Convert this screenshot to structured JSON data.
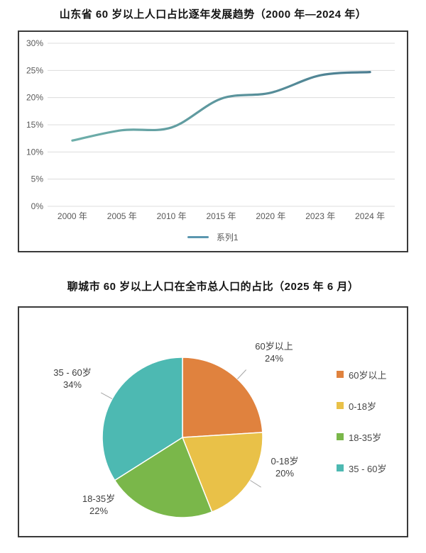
{
  "titles": {
    "line_chart": "山东省 60 岁以上人口占比逐年发展趋势（2000 年—2024 年）",
    "pie_chart": "聊城市 60 岁以上人口在全市总人口的占比（2025 年 6 月）"
  },
  "chart_data": [
    {
      "type": "line",
      "title": "山东省 60 岁以上人口占比逐年发展趋势（2000 年—2024 年）",
      "categories": [
        "2000 年",
        "2005 年",
        "2010 年",
        "2015 年",
        "2020 年",
        "2023 年",
        "2024 年"
      ],
      "series": [
        {
          "name": "系列1",
          "values": [
            12.1,
            14.0,
            14.5,
            19.8,
            20.9,
            24.1,
            24.7
          ]
        }
      ],
      "ylabel": "",
      "xlabel": "",
      "ylim": [
        0,
        30
      ],
      "ytick_labels": [
        "0%",
        "5%",
        "10%",
        "15%",
        "20%",
        "25%",
        "30%"
      ],
      "grid": true,
      "smooth": true,
      "legend_position": "bottom",
      "line_gradient": [
        "#6eafaa",
        "#4b7d91"
      ],
      "legend_color": "#5a96af",
      "gridline_color": "#dcdcdc",
      "axis_text_color": "#595959"
    },
    {
      "type": "pie",
      "title": "聊城市 60 岁以上人口在全市总人口的占比（2025 年 6 月）",
      "start_angle_deg": 0,
      "legend_position": "right",
      "slices": [
        {
          "label": "60岁以上",
          "value": 24,
          "pct_label": "24%",
          "color": "#e0823e"
        },
        {
          "label": "0-18岁",
          "value": 20,
          "pct_label": "20%",
          "color": "#e9c148"
        },
        {
          "label": "18-35岁",
          "value": 22,
          "pct_label": "22%",
          "color": "#7ab74a"
        },
        {
          "label": "35 - 60岁",
          "value": 34,
          "pct_label": "34%",
          "color": "#4db9b2"
        }
      ],
      "leader_line_color": "#a6a6a6"
    }
  ]
}
